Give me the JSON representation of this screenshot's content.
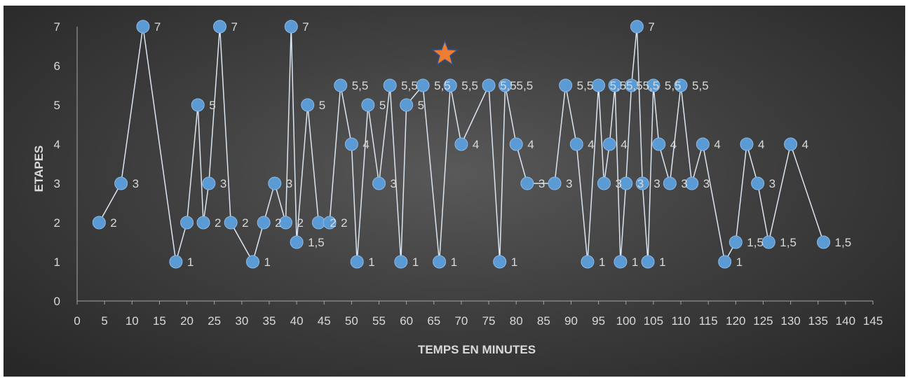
{
  "chart_data": {
    "type": "scatter",
    "xlabel": "TEMPS EN MINUTES",
    "ylabel": "ETAPES",
    "xlim": [
      0,
      145
    ],
    "ylim": [
      0,
      7
    ],
    "x_ticks": [
      "0",
      "5",
      "10",
      "15",
      "20",
      "25",
      "30",
      "35",
      "40",
      "45",
      "50",
      "55",
      "60",
      "65",
      "70",
      "75",
      "80",
      "85",
      "90",
      "95",
      "100",
      "105",
      "110",
      "115",
      "120",
      "125",
      "130",
      "135",
      "140",
      "145"
    ],
    "y_ticks": [
      "0",
      "1",
      "2",
      "3",
      "4",
      "5",
      "6",
      "7"
    ],
    "grid": false,
    "legend": "none",
    "series": [
      {
        "marker": "circle",
        "color": "#5b9bd5",
        "line_color": "#dce6f2",
        "points": [
          {
            "x": 4,
            "y": 2,
            "label": "2"
          },
          {
            "x": 8,
            "y": 3,
            "label": "3"
          },
          {
            "x": 12,
            "y": 7,
            "label": "7"
          },
          {
            "x": 18,
            "y": 1,
            "label": "1"
          },
          {
            "x": 20,
            "y": 2,
            "label": ""
          },
          {
            "x": 22,
            "y": 5,
            "label": "5"
          },
          {
            "x": 23,
            "y": 2,
            "label": "2"
          },
          {
            "x": 24,
            "y": 3,
            "label": "3"
          },
          {
            "x": 26,
            "y": 7,
            "label": "7"
          },
          {
            "x": 28,
            "y": 2,
            "label": "2"
          },
          {
            "x": 32,
            "y": 1,
            "label": "1"
          },
          {
            "x": 34,
            "y": 2,
            "label": "2"
          },
          {
            "x": 36,
            "y": 3,
            "label": "3"
          },
          {
            "x": 38,
            "y": 2,
            "label": "2"
          },
          {
            "x": 39,
            "y": 7,
            "label": "7"
          },
          {
            "x": 40,
            "y": 1.5,
            "label": "1,5"
          },
          {
            "x": 42,
            "y": 5,
            "label": "5"
          },
          {
            "x": 44,
            "y": 2,
            "label": "2"
          },
          {
            "x": 46,
            "y": 2,
            "label": "2"
          },
          {
            "x": 48,
            "y": 5.5,
            "label": "5,5"
          },
          {
            "x": 50,
            "y": 4,
            "label": "4"
          },
          {
            "x": 51,
            "y": 1,
            "label": "1"
          },
          {
            "x": 53,
            "y": 5,
            "label": "5"
          },
          {
            "x": 55,
            "y": 3,
            "label": "3"
          },
          {
            "x": 57,
            "y": 5.5,
            "label": "5,5"
          },
          {
            "x": 59,
            "y": 1,
            "label": "1"
          },
          {
            "x": 60,
            "y": 5,
            "label": "5"
          },
          {
            "x": 63,
            "y": 5.5,
            "label": "5,5"
          },
          {
            "x": 66,
            "y": 1,
            "label": "1"
          },
          {
            "x": 68,
            "y": 5.5,
            "label": "5,5"
          },
          {
            "x": 70,
            "y": 4,
            "label": "4"
          },
          {
            "x": 75,
            "y": 5.5,
            "label": "5,5"
          },
          {
            "x": 77,
            "y": 1,
            "label": "1"
          },
          {
            "x": 78,
            "y": 5.5,
            "label": "5,5"
          },
          {
            "x": 80,
            "y": 4,
            "label": "4"
          },
          {
            "x": 82,
            "y": 3,
            "label": "3"
          },
          {
            "x": 87,
            "y": 3,
            "label": "3"
          },
          {
            "x": 89,
            "y": 5.5,
            "label": "5,5"
          },
          {
            "x": 91,
            "y": 4,
            "label": "4"
          },
          {
            "x": 93,
            "y": 1,
            "label": "1"
          },
          {
            "x": 95,
            "y": 5.5,
            "label": "5,5"
          },
          {
            "x": 96,
            "y": 3,
            "label": "3"
          },
          {
            "x": 97,
            "y": 4,
            "label": "4"
          },
          {
            "x": 98,
            "y": 5.5,
            "label": "5,5"
          },
          {
            "x": 99,
            "y": 1,
            "label": "1"
          },
          {
            "x": 100,
            "y": 3,
            "label": "3"
          },
          {
            "x": 101,
            "y": 5.5,
            "label": "5,5"
          },
          {
            "x": 102,
            "y": 7,
            "label": "7"
          },
          {
            "x": 103,
            "y": 3,
            "label": "3"
          },
          {
            "x": 104,
            "y": 1,
            "label": "1"
          },
          {
            "x": 105,
            "y": 5.5,
            "label": "5,5"
          },
          {
            "x": 106,
            "y": 4,
            "label": "4"
          },
          {
            "x": 108,
            "y": 3,
            "label": "3"
          },
          {
            "x": 110,
            "y": 5.5,
            "label": "5,5"
          },
          {
            "x": 112,
            "y": 3,
            "label": "3"
          },
          {
            "x": 114,
            "y": 4,
            "label": "4"
          },
          {
            "x": 118,
            "y": 1,
            "label": "1"
          },
          {
            "x": 120,
            "y": 1.5,
            "label": "1,5"
          },
          {
            "x": 122,
            "y": 4,
            "label": "4"
          },
          {
            "x": 124,
            "y": 3,
            "label": "3"
          },
          {
            "x": 126,
            "y": 1.5,
            "label": "1,5"
          },
          {
            "x": 130,
            "y": 4,
            "label": "4"
          },
          {
            "x": 136,
            "y": 1.5,
            "label": "1,5"
          }
        ]
      },
      {
        "marker": "star",
        "color": "#ed7d31",
        "points": [
          {
            "x": 67,
            "y": 6.3
          }
        ]
      }
    ]
  }
}
